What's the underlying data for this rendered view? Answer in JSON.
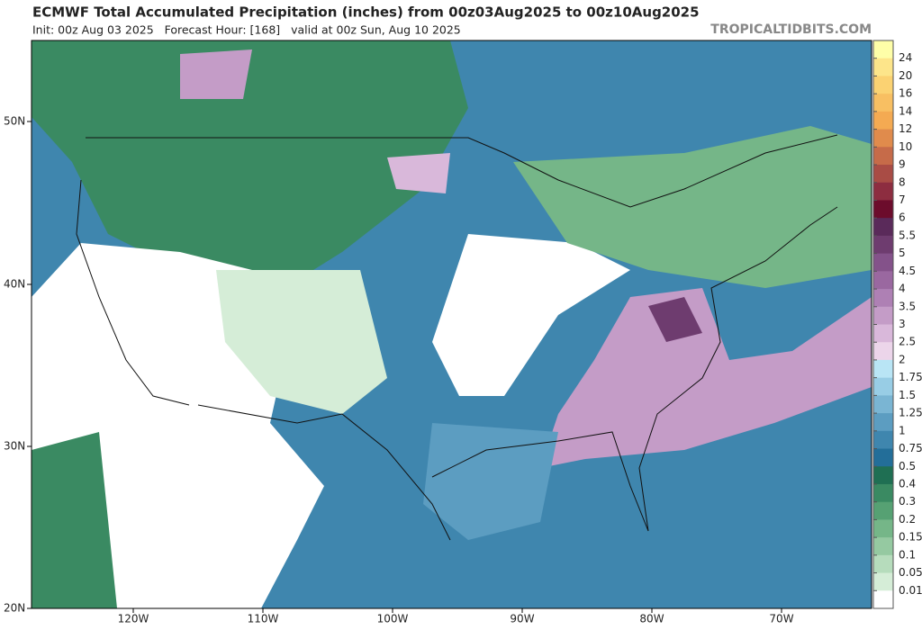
{
  "header": {
    "title": "ECMWF Total Accumulated Precipitation (inches) from 00z03Aug2025 to 00z10Aug2025",
    "subtitle": "Init: 00z Aug 03 2025   Forecast Hour: [168]   valid at 00z Sun, Aug 10 2025",
    "watermark": "TROPICALTIDBITS.COM"
  },
  "map": {
    "lat_labels": [
      "50N",
      "40N",
      "30N",
      "20N"
    ],
    "lon_labels": [
      "120W",
      "110W",
      "100W",
      "90W",
      "80W",
      "70W"
    ]
  },
  "colorbar": {
    "levels": [
      24,
      20,
      16,
      14,
      12,
      10,
      9,
      8,
      7,
      6,
      5.5,
      5,
      4.5,
      4,
      3.5,
      3,
      2.5,
      2,
      1.75,
      1.5,
      1.25,
      1,
      0.75,
      0.5,
      0.4,
      0.3,
      0.2,
      0.15,
      0.1,
      0.05,
      0.01
    ],
    "colors": [
      "#fefea8",
      "#fde58a",
      "#fbd272",
      "#f8bf62",
      "#f4aa52",
      "#e08b4c",
      "#c66b49",
      "#a94c45",
      "#8d2d40",
      "#6c0c2c",
      "#5a2a5a",
      "#6e3c6f",
      "#84528a",
      "#9a68a0",
      "#ae80b4",
      "#c49cc7",
      "#d9b8da",
      "#ecd5ea",
      "#b9e5f5",
      "#98cde5",
      "#7ab5d3",
      "#5c9dc1",
      "#3f86ae",
      "#236e99",
      "#1f6f53",
      "#3a8a62",
      "#56a173",
      "#75b688",
      "#95c9a1",
      "#b6dcbc",
      "#d5edd7",
      "#ffffff"
    ]
  }
}
